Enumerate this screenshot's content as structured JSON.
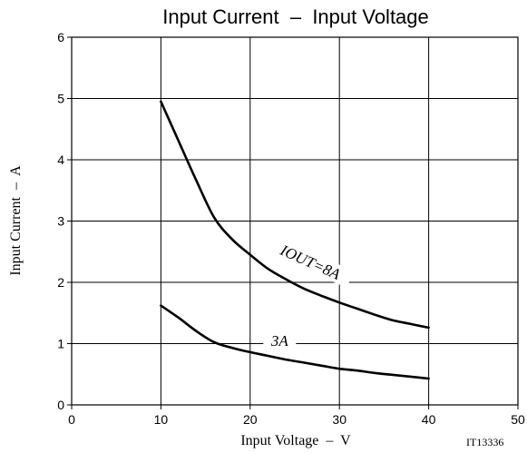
{
  "chart_data": {
    "type": "line",
    "title": "Input Current  –  Input Voltage",
    "xlabel": "Input Voltage  –  V",
    "ylabel": "Input Current  –  A",
    "xlim": [
      0,
      50
    ],
    "ylim": [
      0,
      6
    ],
    "x_ticks": [
      "0",
      "10",
      "20",
      "30",
      "40",
      "50"
    ],
    "y_ticks": [
      "0",
      "1",
      "2",
      "3",
      "4",
      "5",
      "6"
    ],
    "grid": true,
    "code": "IT13336",
    "series": [
      {
        "name": "IOUT=8A",
        "x": [
          10,
          12,
          14,
          16,
          18,
          20,
          22,
          24,
          26,
          28,
          30,
          32,
          34,
          36,
          38,
          40
        ],
        "y": [
          4.95,
          4.3,
          3.65,
          3.05,
          2.7,
          2.45,
          2.22,
          2.05,
          1.9,
          1.78,
          1.67,
          1.57,
          1.47,
          1.38,
          1.32,
          1.26
        ]
      },
      {
        "name": "3A",
        "x": [
          10,
          12,
          14,
          16,
          18,
          20,
          22,
          24,
          26,
          28,
          30,
          32,
          34,
          36,
          38,
          40
        ],
        "y": [
          1.62,
          1.42,
          1.2,
          1.02,
          0.93,
          0.86,
          0.8,
          0.74,
          0.69,
          0.64,
          0.59,
          0.56,
          0.52,
          0.49,
          0.46,
          0.43
        ]
      }
    ]
  }
}
